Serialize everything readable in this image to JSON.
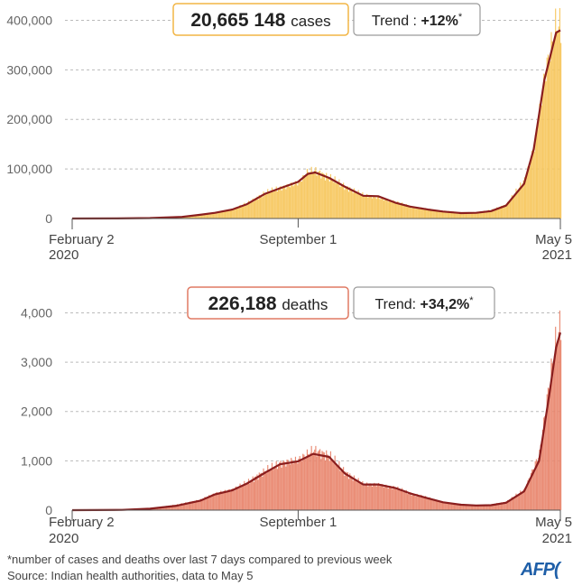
{
  "colors": {
    "cases_bar": "#f6c55a",
    "cases_box_border": "#f2b545",
    "deaths_bar": "#e8836a",
    "deaths_box_border": "#e07a63",
    "trend_line": "#8a1e1e",
    "grid": "#bbbbbb",
    "axis": "#555555",
    "trend_box_border": "#9a9a9a"
  },
  "chart_data": [
    {
      "type": "bar",
      "id": "cases",
      "y_ticks": [
        "0",
        "100,000",
        "200,000",
        "300,000",
        "400,000"
      ],
      "ylim": [
        0,
        410000
      ],
      "x_labels": [
        {
          "line1": "February 2",
          "line2": "2020"
        },
        {
          "line1": "September 1",
          "line2": ""
        },
        {
          "line1": "May 5",
          "line2": "2021"
        }
      ],
      "x_dates": [
        "2020-02-02",
        "2020-09-01",
        "2021-05-05"
      ],
      "total_value": "20,665 148",
      "total_unit": "cases",
      "trend_label": "Trend : ",
      "trend_value": "+12%",
      "trend_star": "*",
      "series": [
        {
          "name": "daily",
          "kind": "bars",
          "points": [
            [
              "2020-02-02",
              0
            ],
            [
              "2020-03-15",
              150
            ],
            [
              "2020-04-15",
              1000
            ],
            [
              "2020-05-15",
              3500
            ],
            [
              "2020-06-01",
              8000
            ],
            [
              "2020-06-15",
              12000
            ],
            [
              "2020-07-01",
              19000
            ],
            [
              "2020-07-15",
              31000
            ],
            [
              "2020-08-01",
              52000
            ],
            [
              "2020-08-15",
              62000
            ],
            [
              "2020-09-01",
              72000
            ],
            [
              "2020-09-10",
              95000
            ],
            [
              "2020-09-17",
              96000
            ],
            [
              "2020-09-30",
              82000
            ],
            [
              "2020-10-15",
              64000
            ],
            [
              "2020-11-01",
              47000
            ],
            [
              "2020-11-15",
              42000
            ],
            [
              "2020-12-01",
              33000
            ],
            [
              "2020-12-15",
              24000
            ],
            [
              "2021-01-01",
              18000
            ],
            [
              "2021-01-15",
              15000
            ],
            [
              "2021-02-01",
              11500
            ],
            [
              "2021-02-15",
              12500
            ],
            [
              "2021-03-01",
              16500
            ],
            [
              "2021-03-15",
              28000
            ],
            [
              "2021-04-01",
              78000
            ],
            [
              "2021-04-10",
              145000
            ],
            [
              "2021-04-20",
              290000
            ],
            [
              "2021-05-01",
              395000
            ],
            [
              "2021-05-05",
              385000
            ]
          ]
        },
        {
          "name": "trend",
          "kind": "line",
          "points": [
            [
              "2020-02-02",
              0
            ],
            [
              "2020-03-15",
              100
            ],
            [
              "2020-04-15",
              900
            ],
            [
              "2020-05-15",
              3200
            ],
            [
              "2020-06-01",
              7500
            ],
            [
              "2020-06-15",
              11500
            ],
            [
              "2020-07-01",
              18000
            ],
            [
              "2020-07-15",
              29000
            ],
            [
              "2020-08-01",
              50000
            ],
            [
              "2020-08-15",
              61000
            ],
            [
              "2020-09-01",
              74000
            ],
            [
              "2020-09-10",
              90000
            ],
            [
              "2020-09-17",
              93000
            ],
            [
              "2020-09-30",
              82000
            ],
            [
              "2020-10-15",
              64000
            ],
            [
              "2020-11-01",
              46000
            ],
            [
              "2020-11-15",
              45000
            ],
            [
              "2020-12-01",
              32000
            ],
            [
              "2020-12-15",
              24000
            ],
            [
              "2021-01-01",
              18000
            ],
            [
              "2021-01-15",
              14000
            ],
            [
              "2021-02-01",
              11000
            ],
            [
              "2021-02-15",
              11500
            ],
            [
              "2021-03-01",
              15000
            ],
            [
              "2021-03-15",
              26000
            ],
            [
              "2021-04-01",
              70000
            ],
            [
              "2021-04-10",
              140000
            ],
            [
              "2021-04-20",
              280000
            ],
            [
              "2021-05-01",
              375000
            ],
            [
              "2021-05-05",
              380000
            ]
          ]
        }
      ]
    },
    {
      "type": "bar",
      "id": "deaths",
      "y_ticks": [
        "0",
        "1,000",
        "2,000",
        "3,000",
        "4,000"
      ],
      "ylim": [
        0,
        4100
      ],
      "x_labels": [
        {
          "line1": "February 2",
          "line2": "2020"
        },
        {
          "line1": "September 1",
          "line2": ""
        },
        {
          "line1": "May 5",
          "line2": "2021"
        }
      ],
      "x_dates": [
        "2020-02-02",
        "2020-09-01",
        "2021-05-05"
      ],
      "total_value": "226,188",
      "total_unit": "deaths",
      "trend_label": "Trend: ",
      "trend_value": "+34,2%",
      "trend_star": "*",
      "series": [
        {
          "name": "daily",
          "kind": "bars",
          "points": [
            [
              "2020-02-02",
              0
            ],
            [
              "2020-03-20",
              8
            ],
            [
              "2020-04-15",
              40
            ],
            [
              "2020-05-10",
              110
            ],
            [
              "2020-06-01",
              210
            ],
            [
              "2020-06-15",
              340
            ],
            [
              "2020-07-01",
              420
            ],
            [
              "2020-07-15",
              560
            ],
            [
              "2020-08-01",
              800
            ],
            [
              "2020-08-15",
              950
            ],
            [
              "2020-09-01",
              1020
            ],
            [
              "2020-09-15",
              1220
            ],
            [
              "2020-09-30",
              1100
            ],
            [
              "2020-10-15",
              760
            ],
            [
              "2020-11-01",
              520
            ],
            [
              "2020-11-15",
              520
            ],
            [
              "2020-12-01",
              450
            ],
            [
              "2020-12-15",
              340
            ],
            [
              "2021-01-01",
              240
            ],
            [
              "2021-01-15",
              160
            ],
            [
              "2021-02-01",
              110
            ],
            [
              "2021-02-15",
              100
            ],
            [
              "2021-03-01",
              110
            ],
            [
              "2021-03-15",
              170
            ],
            [
              "2021-04-01",
              420
            ],
            [
              "2021-04-15",
              1150
            ],
            [
              "2021-04-25",
              2700
            ],
            [
              "2021-05-01",
              3520
            ],
            [
              "2021-05-05",
              3750
            ]
          ]
        },
        {
          "name": "trend",
          "kind": "line",
          "points": [
            [
              "2020-02-02",
              0
            ],
            [
              "2020-03-20",
              5
            ],
            [
              "2020-04-15",
              30
            ],
            [
              "2020-05-10",
              90
            ],
            [
              "2020-06-01",
              190
            ],
            [
              "2020-06-15",
              320
            ],
            [
              "2020-07-01",
              400
            ],
            [
              "2020-07-15",
              540
            ],
            [
              "2020-08-01",
              760
            ],
            [
              "2020-08-15",
              930
            ],
            [
              "2020-09-01",
              990
            ],
            [
              "2020-09-15",
              1140
            ],
            [
              "2020-09-30",
              1080
            ],
            [
              "2020-10-15",
              740
            ],
            [
              "2020-11-01",
              520
            ],
            [
              "2020-11-15",
              520
            ],
            [
              "2020-12-01",
              450
            ],
            [
              "2020-12-15",
              340
            ],
            [
              "2021-01-01",
              240
            ],
            [
              "2021-01-15",
              160
            ],
            [
              "2021-02-01",
              110
            ],
            [
              "2021-02-15",
              95
            ],
            [
              "2021-03-01",
              100
            ],
            [
              "2021-03-15",
              150
            ],
            [
              "2021-04-01",
              380
            ],
            [
              "2021-04-15",
              1000
            ],
            [
              "2021-04-25",
              2400
            ],
            [
              "2021-05-01",
              3300
            ],
            [
              "2021-05-05",
              3600
            ]
          ]
        }
      ]
    }
  ],
  "footnotes": {
    "line1": "*number of cases and deaths over last 7 days compared to previous week",
    "line2": "Source: Indian health authorities, data to May 5"
  },
  "logo_text": "AFP",
  "logo_glyph": "("
}
